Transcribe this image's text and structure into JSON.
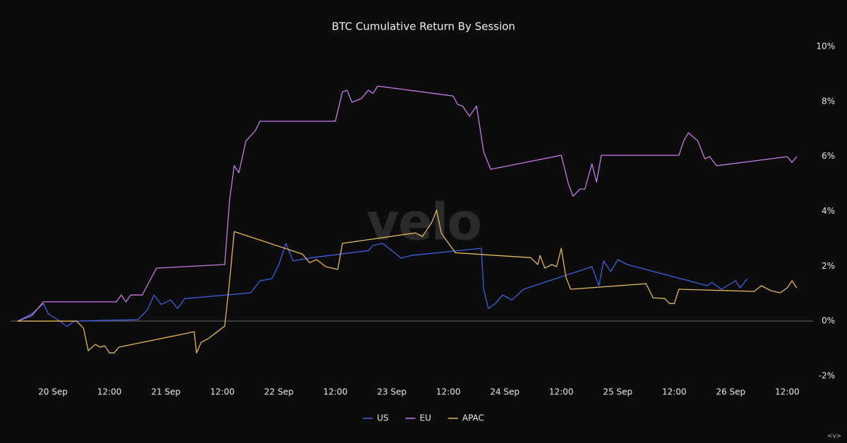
{
  "chart_data": {
    "type": "line",
    "title": "BTC Cumulative Return By Session",
    "watermark": "velo",
    "footer_mark": "<v>",
    "xlim": [
      "19 Sep 15:00",
      "26 Sep 16:00"
    ],
    "xticks": [
      {
        "value": "20 Sep 00:00",
        "label": "20 Sep"
      },
      {
        "value": "20 Sep 12:00",
        "label": "12:00"
      },
      {
        "value": "21 Sep 00:00",
        "label": "21 Sep"
      },
      {
        "value": "21 Sep 12:00",
        "label": "12:00"
      },
      {
        "value": "22 Sep 00:00",
        "label": "22 Sep"
      },
      {
        "value": "22 Sep 12:00",
        "label": "12:00"
      },
      {
        "value": "23 Sep 00:00",
        "label": "23 Sep"
      },
      {
        "value": "23 Sep 12:00",
        "label": "12:00"
      },
      {
        "value": "24 Sep 00:00",
        "label": "24 Sep"
      },
      {
        "value": "24 Sep 12:00",
        "label": "12:00"
      },
      {
        "value": "25 Sep 00:00",
        "label": "25 Sep"
      },
      {
        "value": "25 Sep 12:00",
        "label": "12:00"
      },
      {
        "value": "26 Sep 00:00",
        "label": "26 Sep"
      },
      {
        "value": "26 Sep 12:00",
        "label": "12:00"
      }
    ],
    "ylim": [
      -2,
      10
    ],
    "yticks": [
      {
        "value": -2,
        "label": "-2%"
      },
      {
        "value": 0,
        "label": "0%"
      },
      {
        "value": 2,
        "label": "2%"
      },
      {
        "value": 4,
        "label": "4%"
      },
      {
        "value": 6,
        "label": "6%"
      },
      {
        "value": 8,
        "label": "8%"
      },
      {
        "value": 10,
        "label": "10%"
      }
    ],
    "y_axis_side": "right",
    "legend": "bottom",
    "series": [
      {
        "name": "US",
        "color": "#3f5fe0",
        "x": [
          "19 Sep 16:30",
          "19 Sep 19:30",
          "19 Sep 22:00",
          "19 Sep 23:00",
          "20 Sep 01:30",
          "20 Sep 03:00",
          "20 Sep 04:30",
          "20 Sep 18:00",
          "20 Sep 20:00",
          "20 Sep 21:30",
          "20 Sep 23:00",
          "21 Sep 01:00",
          "21 Sep 02:30",
          "21 Sep 04:00",
          "21 Sep 18:00",
          "21 Sep 20:00",
          "21 Sep 22:30",
          "22 Sep 00:00",
          "22 Sep 01:30",
          "22 Sep 03:00",
          "22 Sep 07:00",
          "22 Sep 19:00",
          "22 Sep 20:00",
          "22 Sep 22:00",
          "23 Sep 00:00",
          "23 Sep 02:00",
          "23 Sep 04:00",
          "23 Sep 19:00",
          "23 Sep 19:30",
          "23 Sep 20:30",
          "23 Sep 22:00",
          "23 Sep 23:30",
          "24 Sep 01:30",
          "24 Sep 04:00",
          "24 Sep 18:30",
          "24 Sep 20:00",
          "24 Sep 21:00",
          "24 Sep 22:30",
          "25 Sep 00:00",
          "25 Sep 02:00",
          "25 Sep 19:00",
          "25 Sep 20:00",
          "25 Sep 22:00",
          "26 Sep 01:00",
          "26 Sep 02:00",
          "26 Sep 03:30"
        ],
        "values": [
          0,
          0.26,
          0.64,
          0.26,
          0,
          -0.2,
          0,
          0.05,
          0.39,
          0.95,
          0.6,
          0.77,
          0.46,
          0.82,
          1.03,
          1.47,
          1.54,
          2.06,
          2.83,
          2.19,
          2.31,
          2.57,
          2.75,
          2.83,
          2.57,
          2.29,
          2.39,
          2.65,
          1.16,
          0.46,
          0.64,
          0.95,
          0.77,
          1.16,
          1.98,
          1.29,
          2.19,
          1.8,
          2.24,
          2.06,
          1.29,
          1.41,
          1.16,
          1.47,
          1.21,
          1.54
        ]
      },
      {
        "name": "EU",
        "color": "#c47de6",
        "x": [
          "19 Sep 16:30",
          "19 Sep 19:30",
          "19 Sep 22:00",
          "20 Sep 13:30",
          "20 Sep 14:30",
          "20 Sep 15:30",
          "20 Sep 16:30",
          "20 Sep 19:00",
          "20 Sep 20:00",
          "20 Sep 22:00",
          "21 Sep 12:30",
          "21 Sep 13:30",
          "21 Sep 14:30",
          "21 Sep 15:30",
          "21 Sep 17:00",
          "21 Sep 19:00",
          "21 Sep 20:00",
          "22 Sep 12:00",
          "22 Sep 13:30",
          "22 Sep 14:30",
          "22 Sep 15:30",
          "22 Sep 17:30",
          "22 Sep 19:00",
          "22 Sep 20:00",
          "22 Sep 21:00",
          "23 Sep 13:00",
          "23 Sep 14:00",
          "23 Sep 15:00",
          "23 Sep 16:30",
          "23 Sep 18:00",
          "23 Sep 19:30",
          "23 Sep 21:00",
          "24 Sep 12:00",
          "24 Sep 13:30",
          "24 Sep 14:30",
          "24 Sep 16:00",
          "24 Sep 17:00",
          "24 Sep 18:30",
          "24 Sep 19:30",
          "24 Sep 20:30",
          "25 Sep 13:00",
          "25 Sep 14:00",
          "25 Sep 15:00",
          "25 Sep 17:00",
          "25 Sep 18:30",
          "25 Sep 19:30",
          "25 Sep 21:00",
          "26 Sep 12:00",
          "26 Sep 13:00",
          "26 Sep 14:00"
        ],
        "values": [
          0,
          0.2,
          0.7,
          0.7,
          0.95,
          0.7,
          0.95,
          0.95,
          1.29,
          1.93,
          2.06,
          4.37,
          5.66,
          5.4,
          6.56,
          6.94,
          7.28,
          7.28,
          8.35,
          8.41,
          7.97,
          8.1,
          8.41,
          8.3,
          8.56,
          8.2,
          7.89,
          7.84,
          7.46,
          7.84,
          6.17,
          5.53,
          6.04,
          5.01,
          4.55,
          4.81,
          4.81,
          5.73,
          5.06,
          6.04,
          6.04,
          6.56,
          6.86,
          6.56,
          5.91,
          5.99,
          5.66,
          5.99,
          5.78,
          5.99
        ]
      },
      {
        "name": "APAC",
        "color": "#e3b85e",
        "x": [
          "19 Sep 16:30",
          "20 Sep 05:00",
          "20 Sep 06:30",
          "20 Sep 07:30",
          "20 Sep 09:00",
          "20 Sep 10:00",
          "20 Sep 11:00",
          "20 Sep 12:00",
          "20 Sep 13:00",
          "20 Sep 14:00",
          "21 Sep 06:00",
          "21 Sep 06:30",
          "21 Sep 07:30",
          "21 Sep 09:00",
          "21 Sep 10:30",
          "21 Sep 12:30",
          "21 Sep 13:30",
          "21 Sep 14:30",
          "22 Sep 05:00",
          "22 Sep 06:30",
          "22 Sep 08:00",
          "22 Sep 10:00",
          "22 Sep 12:30",
          "22 Sep 13:30",
          "23 Sep 05:00",
          "23 Sep 06:30",
          "23 Sep 07:30",
          "23 Sep 08:30",
          "23 Sep 09:30",
          "23 Sep 10:30",
          "23 Sep 11:00",
          "23 Sep 13:30",
          "24 Sep 05:30",
          "24 Sep 07:00",
          "24 Sep 07:30",
          "24 Sep 08:30",
          "24 Sep 10:00",
          "24 Sep 11:00",
          "24 Sep 12:00",
          "24 Sep 13:00",
          "24 Sep 14:00",
          "25 Sep 06:00",
          "25 Sep 07:30",
          "25 Sep 10:00",
          "25 Sep 11:00",
          "25 Sep 12:00",
          "25 Sep 13:00",
          "26 Sep 05:00",
          "26 Sep 06:30",
          "26 Sep 08:30",
          "26 Sep 10:30",
          "26 Sep 12:00",
          "26 Sep 13:00",
          "26 Sep 14:00"
        ],
        "values": [
          0,
          0,
          -0.26,
          -1.08,
          -0.85,
          -0.95,
          -0.9,
          -1.16,
          -1.16,
          -0.95,
          -0.39,
          -1.16,
          -0.77,
          -0.64,
          -0.44,
          -0.18,
          1.41,
          3.26,
          2.44,
          2.13,
          2.24,
          1.98,
          1.88,
          2.83,
          3.21,
          3.08,
          3.34,
          3.6,
          4.04,
          3.21,
          3.08,
          2.49,
          2.31,
          2.06,
          2.39,
          1.93,
          2.06,
          1.98,
          2.65,
          1.59,
          1.16,
          1.36,
          0.85,
          0.82,
          0.64,
          0.64,
          1.16,
          1.08,
          1.29,
          1.11,
          1.03,
          1.21,
          1.47,
          1.21
        ]
      }
    ]
  }
}
